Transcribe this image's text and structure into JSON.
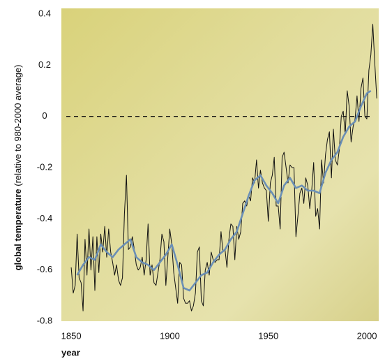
{
  "chart_data": {
    "type": "line",
    "y_label_bold": "global temperature",
    "y_label_rest": " (relative to 980-2000 average)",
    "x_label": "year",
    "xlim": [
      1845,
      2006
    ],
    "xticks": [
      1850,
      1900,
      1950,
      2000
    ],
    "ylim": [
      -0.8,
      0.4
    ],
    "yticks": [
      0.4,
      0.2,
      0,
      -0.2,
      -0.4,
      -0.6,
      -0.8
    ],
    "reference_line": 0,
    "series": [
      {
        "color": "#111111",
        "x": [
          1850,
          1851,
          1852,
          1853,
          1854,
          1855,
          1856,
          1857,
          1858,
          1859,
          1860,
          1861,
          1862,
          1863,
          1864,
          1865,
          1866,
          1867,
          1868,
          1869,
          1870,
          1871,
          1872,
          1873,
          1874,
          1875,
          1876,
          1877,
          1878,
          1879,
          1880,
          1881,
          1882,
          1883,
          1884,
          1885,
          1886,
          1887,
          1888,
          1889,
          1890,
          1891,
          1892,
          1893,
          1894,
          1895,
          1896,
          1897,
          1898,
          1899,
          1900,
          1901,
          1902,
          1903,
          1904,
          1905,
          1906,
          1907,
          1908,
          1909,
          1910,
          1911,
          1912,
          1913,
          1914,
          1915,
          1916,
          1917,
          1918,
          1919,
          1920,
          1921,
          1922,
          1923,
          1924,
          1925,
          1926,
          1927,
          1928,
          1929,
          1930,
          1931,
          1932,
          1933,
          1934,
          1935,
          1936,
          1937,
          1938,
          1939,
          1940,
          1941,
          1942,
          1943,
          1944,
          1945,
          1946,
          1947,
          1948,
          1949,
          1950,
          1951,
          1952,
          1953,
          1954,
          1955,
          1956,
          1957,
          1958,
          1959,
          1960,
          1961,
          1962,
          1963,
          1964,
          1965,
          1966,
          1967,
          1968,
          1969,
          1970,
          1971,
          1972,
          1973,
          1974,
          1975,
          1976,
          1977,
          1978,
          1979,
          1980,
          1981,
          1982,
          1983,
          1984,
          1985,
          1986,
          1987,
          1988,
          1989,
          1990,
          1991,
          1992,
          1993,
          1994,
          1995,
          1996,
          1997,
          1998,
          1999,
          2000,
          2001,
          2002,
          2003,
          2004,
          2005
        ],
        "values": [
          -0.59,
          -0.69,
          -0.66,
          -0.46,
          -0.63,
          -0.65,
          -0.76,
          -0.48,
          -0.62,
          -0.44,
          -0.6,
          -0.47,
          -0.68,
          -0.47,
          -0.61,
          -0.46,
          -0.53,
          -0.43,
          -0.55,
          -0.44,
          -0.53,
          -0.57,
          -0.62,
          -0.58,
          -0.64,
          -0.66,
          -0.63,
          -0.38,
          -0.23,
          -0.52,
          -0.51,
          -0.47,
          -0.52,
          -0.58,
          -0.6,
          -0.59,
          -0.55,
          -0.62,
          -0.56,
          -0.42,
          -0.62,
          -0.58,
          -0.65,
          -0.66,
          -0.61,
          -0.56,
          -0.46,
          -0.49,
          -0.66,
          -0.55,
          -0.44,
          -0.5,
          -0.61,
          -0.67,
          -0.73,
          -0.57,
          -0.58,
          -0.71,
          -0.73,
          -0.73,
          -0.72,
          -0.76,
          -0.74,
          -0.69,
          -0.53,
          -0.51,
          -0.72,
          -0.74,
          -0.6,
          -0.57,
          -0.62,
          -0.53,
          -0.56,
          -0.57,
          -0.56,
          -0.56,
          -0.45,
          -0.53,
          -0.52,
          -0.59,
          -0.48,
          -0.42,
          -0.43,
          -0.56,
          -0.43,
          -0.48,
          -0.45,
          -0.34,
          -0.33,
          -0.35,
          -0.31,
          -0.33,
          -0.24,
          -0.26,
          -0.17,
          -0.28,
          -0.21,
          -0.26,
          -0.28,
          -0.29,
          -0.41,
          -0.26,
          -0.23,
          -0.16,
          -0.35,
          -0.35,
          -0.44,
          -0.16,
          -0.14,
          -0.2,
          -0.26,
          -0.19,
          -0.2,
          -0.2,
          -0.47,
          -0.39,
          -0.3,
          -0.28,
          -0.34,
          -0.24,
          -0.27,
          -0.36,
          -0.29,
          -0.18,
          -0.39,
          -0.36,
          -0.44,
          -0.17,
          -0.26,
          -0.15,
          -0.09,
          -0.06,
          -0.24,
          -0.05,
          -0.17,
          -0.19,
          -0.13,
          0.0,
          0.02,
          -0.07,
          0.1,
          0.04,
          -0.1,
          -0.04,
          -0.01,
          0.08,
          -0.02,
          0.11,
          0.15,
          0.0,
          -0.01,
          0.18,
          0.24,
          0.36,
          0.21,
          0.07
        ]
      },
      {
        "color": "#6b8fb5",
        "x": [
          1853,
          1856,
          1859,
          1862,
          1865,
          1868,
          1871,
          1874,
          1877,
          1880,
          1883,
          1886,
          1889,
          1892,
          1895,
          1898,
          1901,
          1904,
          1907,
          1910,
          1913,
          1916,
          1919,
          1922,
          1925,
          1928,
          1931,
          1934,
          1937,
          1940,
          1943,
          1946,
          1949,
          1952,
          1955,
          1958,
          1961,
          1964,
          1967,
          1970,
          1973,
          1976,
          1979,
          1982,
          1985,
          1988,
          1991,
          1994,
          1997,
          2000,
          2002
        ],
        "values": [
          -0.62,
          -0.58,
          -0.55,
          -0.56,
          -0.5,
          -0.53,
          -0.55,
          -0.52,
          -0.5,
          -0.48,
          -0.55,
          -0.57,
          -0.58,
          -0.6,
          -0.57,
          -0.54,
          -0.5,
          -0.58,
          -0.67,
          -0.68,
          -0.65,
          -0.62,
          -0.61,
          -0.57,
          -0.54,
          -0.52,
          -0.48,
          -0.45,
          -0.38,
          -0.31,
          -0.25,
          -0.23,
          -0.27,
          -0.3,
          -0.34,
          -0.27,
          -0.24,
          -0.28,
          -0.27,
          -0.29,
          -0.29,
          -0.3,
          -0.22,
          -0.17,
          -0.14,
          -0.08,
          -0.04,
          -0.02,
          0.04,
          0.09,
          0.1
        ]
      }
    ]
  }
}
